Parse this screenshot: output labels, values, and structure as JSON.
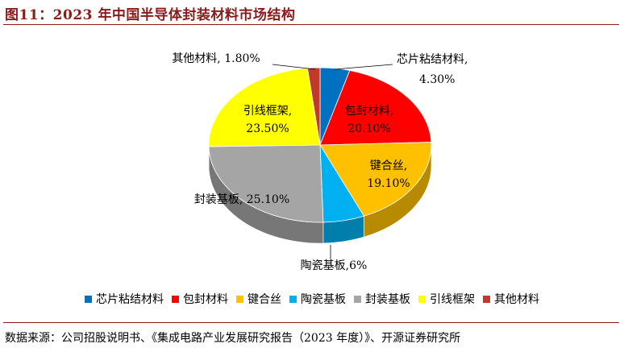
{
  "title": "图11：2023 年中国半导体封装材料市场结构",
  "source": "数据来源：公司招股说明书、《集成电路产业发展研究报告（2023 年度）》、开源证券研究所",
  "chart_data": {
    "type": "pie",
    "title": "",
    "series": [
      {
        "name": "芯片粘结材料",
        "value": 4.3,
        "label": "4.30%",
        "color": "#0070c0"
      },
      {
        "name": "包封材料",
        "value": 20.1,
        "label": "20.10%",
        "color": "#ff0000"
      },
      {
        "name": "键合丝",
        "value": 19.1,
        "label": "19.10%",
        "color": "#ffc000"
      },
      {
        "name": "陶瓷基板",
        "value": 6.0,
        "label": "6%",
        "color": "#00b0f0"
      },
      {
        "name": "封装基板",
        "value": 25.1,
        "label": "25.10%",
        "color": "#a5a5a5"
      },
      {
        "name": "引线框架",
        "value": 23.5,
        "label": "23.50%",
        "color": "#ffff00"
      },
      {
        "name": "其他材料",
        "value": 1.8,
        "label": "1.80%",
        "color": "#c0392b"
      }
    ],
    "legend_position": "bottom",
    "style": "3d"
  }
}
